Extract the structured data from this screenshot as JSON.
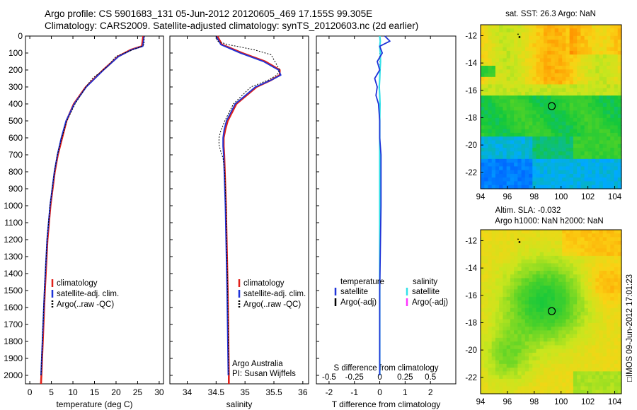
{
  "figure": {
    "title_line1": "Argo profile: CS 5901683_131 05-Jun-2012 20120605_469 17.155S 99.305E",
    "title_line2": "Climatology: CARS2009. Satellite-adjusted climatology: synTS_20120603.nc (2d earlier)",
    "credit": "□IMOS 09-Jun-2012 17:01:23",
    "argo_label": "Argo Australia",
    "pi_label": "PI: Susan Wijffels"
  },
  "colors": {
    "climatology": "#e0201a",
    "satellite": "#1e33d8",
    "argo": "#000000",
    "salinity_satellite": "#33e0e8",
    "salinity_argo": "#ff33ff"
  },
  "chart_data": [
    {
      "type": "line",
      "title": "",
      "xlabel": "temperature (deg C)",
      "ylabel": "",
      "xlim": [
        -1,
        31
      ],
      "ylim": [
        0,
        2050
      ],
      "y_inverted": true,
      "xticks": [
        0,
        5,
        10,
        15,
        20,
        25,
        30
      ],
      "yticks": [
        0,
        100,
        200,
        300,
        400,
        500,
        600,
        700,
        800,
        900,
        1000,
        1100,
        1200,
        1300,
        1400,
        1500,
        1600,
        1700,
        1800,
        1900,
        2000
      ],
      "legend": [
        "climatology",
        "satellite-adj. clim.",
        "Argo(..raw -QC)"
      ],
      "series": [
        {
          "name": "climatology",
          "depth": [
            0,
            60,
            80,
            120,
            200,
            300,
            400,
            500,
            600,
            700,
            800,
            1000,
            1200,
            1500,
            2000,
            2050
          ],
          "values": [
            26.3,
            26.0,
            23.5,
            20.5,
            17.0,
            13.0,
            10.2,
            8.5,
            7.5,
            6.5,
            5.8,
            4.8,
            4.1,
            3.5,
            2.7,
            2.6
          ]
        },
        {
          "name": "satellite-adj. clim.",
          "depth": [
            0,
            60,
            80,
            120,
            200,
            300,
            400,
            500,
            600,
            700,
            800,
            1000,
            1200,
            1500,
            2000
          ],
          "values": [
            26.5,
            26.2,
            23.7,
            20.6,
            17.1,
            13.1,
            10.3,
            8.4,
            7.3,
            6.4,
            5.7,
            4.7,
            4.0,
            3.4,
            2.6
          ]
        },
        {
          "name": "Argo(..raw -QC)",
          "depth": [
            0,
            50,
            60,
            80,
            120,
            180,
            250,
            300,
            400,
            500,
            600,
            700,
            800,
            1000,
            1200,
            1500,
            2000
          ],
          "values": [
            26.5,
            26.5,
            26.0,
            24.0,
            20.0,
            18.0,
            14.5,
            13.0,
            10.5,
            8.6,
            7.4,
            6.4,
            5.7,
            4.7,
            4.0,
            3.4,
            2.6
          ]
        }
      ]
    },
    {
      "type": "line",
      "title": "",
      "xlabel": "salinity",
      "ylabel": "",
      "xlim": [
        33.7,
        36.1
      ],
      "ylim": [
        0,
        2050
      ],
      "y_inverted": true,
      "xticks": [
        34,
        34.5,
        35,
        35.5,
        36
      ],
      "legend": [
        "climatology",
        "satellite-adj. clim.",
        "Argo(..raw -QC)"
      ],
      "series": [
        {
          "name": "climatology",
          "depth": [
            0,
            50,
            100,
            150,
            200,
            230,
            260,
            300,
            400,
            500,
            550,
            600,
            650,
            700,
            800,
            1000,
            1500,
            2000,
            2050
          ],
          "values": [
            34.52,
            34.6,
            34.95,
            35.35,
            35.6,
            35.6,
            35.45,
            35.2,
            34.85,
            34.7,
            34.66,
            34.63,
            34.63,
            34.64,
            34.65,
            34.67,
            34.7,
            34.72,
            34.72
          ]
        },
        {
          "name": "satellite-adj. clim.",
          "depth": [
            0,
            50,
            100,
            150,
            200,
            230,
            260,
            300,
            400,
            500,
            550,
            600,
            650,
            700,
            800,
            1000,
            1500,
            2000
          ],
          "values": [
            34.5,
            34.58,
            34.92,
            35.32,
            35.58,
            35.62,
            35.45,
            35.18,
            34.83,
            34.68,
            34.64,
            34.62,
            34.62,
            34.63,
            34.64,
            34.66,
            34.69,
            34.71
          ]
        },
        {
          "name": "Argo(..raw -QC)",
          "depth": [
            0,
            30,
            50,
            80,
            110,
            140,
            170,
            200,
            230,
            260,
            300,
            400,
            500,
            560,
            600,
            640,
            680,
            720,
            800,
            1000,
            1500,
            2000
          ],
          "values": [
            34.5,
            34.52,
            34.7,
            35.15,
            35.45,
            35.5,
            35.55,
            35.6,
            35.55,
            35.4,
            35.1,
            34.8,
            34.65,
            34.58,
            34.55,
            34.55,
            34.58,
            34.62,
            34.65,
            34.67,
            34.7,
            34.72
          ]
        }
      ]
    },
    {
      "type": "line",
      "title": "",
      "xlabel": "T difference from climatology",
      "xlabel_top": "S difference from climatology",
      "ylabel": "",
      "xlim": [
        -2.5,
        3
      ],
      "ylim": [
        0,
        2050
      ],
      "y_inverted": true,
      "xticks": [
        -2,
        -1,
        0,
        1,
        2
      ],
      "xticks_top": [
        "-0.5",
        "-0.25",
        "0",
        "0.25",
        "0.5"
      ],
      "legend_groups": [
        "temperature",
        "salinity"
      ],
      "legend": [
        "satellite",
        "Argo(-adj)",
        "satellite",
        "Argo(-adj)"
      ],
      "series": [
        {
          "name": "temperature satellite",
          "depth": [
            0,
            30,
            60,
            100,
            150,
            200,
            250,
            300,
            350,
            400,
            500,
            600,
            700,
            800,
            1000,
            1500,
            2000
          ],
          "values": [
            0.2,
            0.4,
            0.0,
            0.1,
            -0.1,
            0.0,
            -0.2,
            -0.1,
            -0.15,
            -0.05,
            0.0,
            0.0,
            0.05,
            0.05,
            0.05,
            0.0,
            0.0
          ]
        },
        {
          "name": "salinity satellite",
          "depth": [
            0,
            30,
            60,
            100,
            150,
            200,
            250,
            300,
            350,
            400,
            500,
            600,
            700,
            800,
            1000,
            1500,
            2000
          ],
          "values": [
            0.0,
            0.02,
            0.0,
            0.02,
            0.03,
            0.01,
            0.0,
            -0.02,
            0.0,
            0.01,
            0.0,
            0.0,
            0.0,
            0.0,
            0.0,
            0.0,
            0.0
          ]
        },
        {
          "name": "zero reference",
          "depth": [
            100,
            700
          ],
          "values": [
            0.0,
            0.0
          ]
        }
      ]
    },
    {
      "type": "heatmap",
      "title": "sat. SST: 26.3 Argo: NaN",
      "xlabel": "",
      "ylabel": "",
      "xlim": [
        94,
        104.5
      ],
      "ylim": [
        -23.2,
        -11.2
      ],
      "xticks": [
        94,
        96,
        98,
        100,
        102,
        104
      ],
      "yticks": [
        -12,
        -14,
        -16,
        -18,
        -20,
        -22
      ],
      "marker": {
        "lon": 99.305,
        "lat": -17.155
      },
      "track_point": {
        "lon": 96.9,
        "lat": -12.1
      }
    },
    {
      "type": "heatmap",
      "title": "Altim. SLA: -0.032",
      "subtitle": "Argo h1000: NaN h2000: NaN",
      "xlabel": "",
      "ylabel": "",
      "xlim": [
        94,
        104.5
      ],
      "ylim": [
        -23.2,
        -11.2
      ],
      "xticks": [
        94,
        96,
        98,
        100,
        102,
        104
      ],
      "yticks": [
        -12,
        -14,
        -16,
        -18,
        -20,
        -22
      ],
      "marker": {
        "lon": 99.305,
        "lat": -17.155
      },
      "track_point": {
        "lon": 96.9,
        "lat": -12.1
      }
    }
  ]
}
